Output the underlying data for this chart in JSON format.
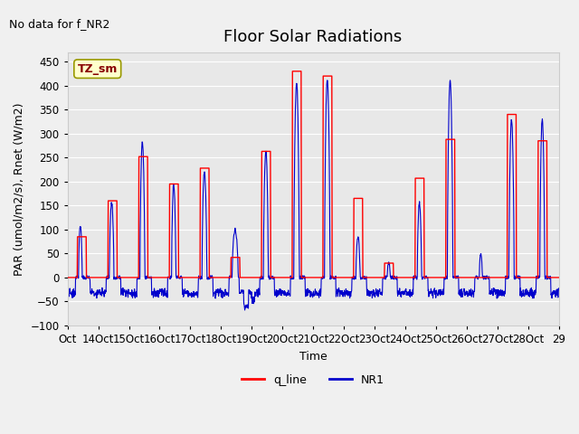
{
  "title": "Floor Solar Radiations",
  "ylabel": "PAR (umol/m2/s), Rnet (W/m2)",
  "xlabel": "Time",
  "watermark_text": "No data for f_NR2",
  "tag_text": "TZ_sm",
  "tag_color": "#ffffcc",
  "tag_border": "#999900",
  "tag_text_color": "#880000",
  "ylim": [
    -100,
    470
  ],
  "yticks": [
    -100,
    -50,
    0,
    50,
    100,
    150,
    200,
    250,
    300,
    350,
    400,
    450
  ],
  "xtick_labels": [
    "Oct 14",
    "Oct 15",
    "Oct 16",
    "Oct 17",
    "Oct 18",
    "Oct 19",
    "Oct 20",
    "Oct 21",
    "Oct 22",
    "Oct 23",
    "Oct 24",
    "Oct 25",
    "Oct 26",
    "Oct 27",
    "Oct 28",
    "Oct 29"
  ],
  "q_line_color": "#ff0000",
  "NR1_color": "#0000cc",
  "legend_labels": [
    "q_line",
    "NR1"
  ],
  "plot_bg_color": "#e8e8e8",
  "fig_bg_color": "#f0f0f0",
  "grid_color": "#ffffff",
  "title_fontsize": 13,
  "label_fontsize": 9,
  "tick_fontsize": 8.5,
  "watermark_fontsize": 9
}
